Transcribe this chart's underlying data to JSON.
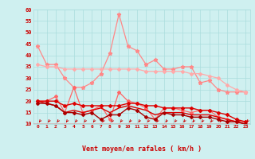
{
  "x": [
    0,
    1,
    2,
    3,
    4,
    5,
    6,
    7,
    8,
    9,
    10,
    11,
    12,
    13,
    14,
    15,
    16,
    17,
    18,
    19,
    20,
    21,
    22,
    23
  ],
  "series": [
    {
      "name": "rafales_max",
      "color": "#ff8888",
      "linewidth": 0.9,
      "marker": "*",
      "markersize": 3.5,
      "values": [
        44,
        36,
        36,
        30,
        26,
        26,
        28,
        32,
        41,
        58,
        44,
        42,
        36,
        38,
        34,
        34,
        35,
        35,
        28,
        29,
        25,
        24,
        24,
        24
      ]
    },
    {
      "name": "rafales_mean",
      "color": "#ffaaaa",
      "linewidth": 0.9,
      "marker": "D",
      "markersize": 2.0,
      "values": [
        36,
        35,
        35,
        34,
        34,
        34,
        34,
        34,
        34,
        34,
        34,
        34,
        33,
        33,
        33,
        33,
        33,
        32,
        32,
        31,
        30,
        27,
        25,
        24
      ]
    },
    {
      "name": "vent_max",
      "color": "#ff6666",
      "linewidth": 0.9,
      "marker": "D",
      "markersize": 2.0,
      "values": [
        20,
        20,
        22,
        15,
        26,
        15,
        16,
        18,
        12,
        24,
        20,
        19,
        17,
        12,
        17,
        17,
        16,
        15,
        16,
        16,
        13,
        12,
        11,
        11
      ]
    },
    {
      "name": "vent_mean_upper",
      "color": "#dd0000",
      "linewidth": 1.0,
      "marker": "D",
      "markersize": 2.0,
      "values": [
        20,
        20,
        20,
        18,
        19,
        18,
        18,
        18,
        18,
        18,
        19,
        19,
        18,
        18,
        17,
        17,
        17,
        17,
        16,
        16,
        15,
        14,
        12,
        11
      ]
    },
    {
      "name": "vent_mean_lower",
      "color": "#dd0000",
      "linewidth": 1.0,
      "marker": null,
      "markersize": 0,
      "values": [
        20,
        19,
        18,
        15,
        16,
        15,
        16,
        17,
        15,
        17,
        18,
        17,
        16,
        14,
        15,
        15,
        15,
        14,
        14,
        14,
        13,
        12,
        11,
        10
      ]
    },
    {
      "name": "vent_min",
      "color": "#aa0000",
      "linewidth": 1.0,
      "marker": "D",
      "markersize": 2.0,
      "values": [
        19,
        19,
        18,
        15,
        15,
        14,
        15,
        12,
        14,
        14,
        17,
        16,
        13,
        12,
        15,
        14,
        14,
        13,
        13,
        13,
        12,
        11,
        11,
        10
      ]
    }
  ],
  "xlabel": "Vent moyen/en rafales ( km/h )",
  "ylim": [
    10,
    60
  ],
  "yticks": [
    10,
    15,
    20,
    25,
    30,
    35,
    40,
    45,
    50,
    55,
    60
  ],
  "xticks": [
    0,
    1,
    2,
    3,
    4,
    5,
    6,
    7,
    8,
    9,
    10,
    11,
    12,
    13,
    14,
    15,
    16,
    17,
    18,
    19,
    20,
    21,
    22,
    23
  ],
  "background_color": "#cff0f0",
  "grid_color": "#aadddd",
  "red_color": "#cc0000"
}
